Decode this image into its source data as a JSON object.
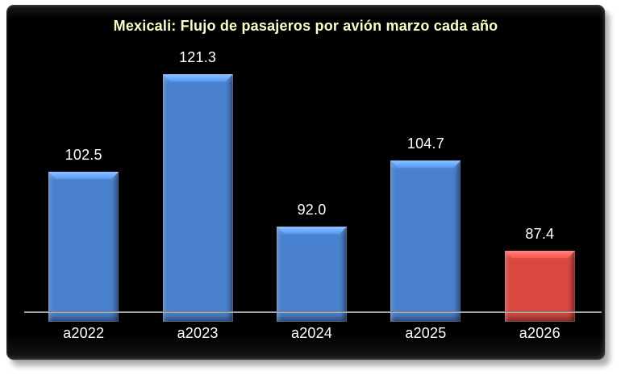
{
  "page": {
    "background": "#FFFFFF"
  },
  "panel": {
    "background": "#000000"
  },
  "chart_data": {
    "type": "bar",
    "title": "Mexicali: Flujo de pasajeros por avión marzo cada año",
    "title_color": "#FFFFC9",
    "categories": [
      "a2022",
      "a2023",
      "a2024",
      "a2025",
      "a2026"
    ],
    "values": [
      102.5,
      121.3,
      92.0,
      104.7,
      87.4
    ],
    "value_labels": [
      "102.5",
      "121.3",
      "92.0",
      "104.7",
      "87.4"
    ],
    "bar_fill": [
      "#4A81CE",
      "#4A81CE",
      "#4A81CE",
      "#4A81CE",
      "#D9483F"
    ],
    "bar_highlight": [
      "#78A6E0",
      "#78A6E0",
      "#78A6E0",
      "#78A6E0",
      "#E8736B"
    ],
    "xlabel": "",
    "ylabel": "",
    "ylim": [
      73.8,
      130.8
    ],
    "grid": false,
    "legend": false,
    "label_color": "#FFFFFF",
    "axis_line_color": "#BFBFBF"
  }
}
